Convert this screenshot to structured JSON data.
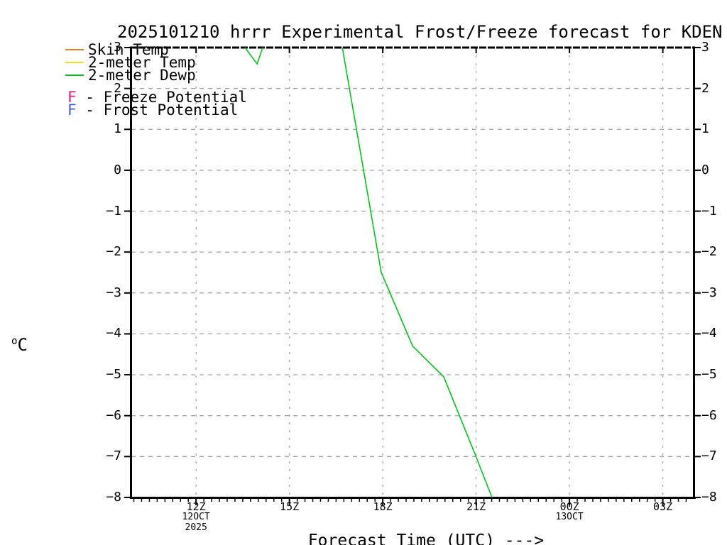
{
  "title": "2025101210 hrrr Experimental Frost/Freeze forecast for KDEN",
  "y_unit": {
    "sup": "o",
    "base": "C"
  },
  "colors": {
    "skin_temp": "#e8821e",
    "temp_2m": "#e8e020",
    "dewp_2m": "#00c818",
    "freeze": "#f01478",
    "frost": "#3c5cff",
    "grid": "#a9a9a9",
    "axis": "#000000"
  },
  "legend": {
    "items": [
      {
        "kind": "line",
        "colorKey": "skin_temp",
        "label": "Skin Temp"
      },
      {
        "kind": "line",
        "colorKey": "temp_2m",
        "label": "2-meter Temp"
      },
      {
        "kind": "line",
        "colorKey": "dewp_2m",
        "label": "2-meter Dewp"
      },
      {
        "kind": "marker",
        "marker": "F",
        "sep": " - ",
        "colorKey": "freeze",
        "label": "Freeze Potential"
      },
      {
        "kind": "marker",
        "marker": "F",
        "sep": " - ",
        "colorKey": "frost",
        "label": "Frost Potential"
      }
    ]
  },
  "chart_data": {
    "type": "line",
    "title": "2025101210 hrrr Experimental Frost/Freeze forecast for KDEN",
    "xlabel": "Forecast Time (UTC) --->",
    "ylabel": "oC",
    "x_axis": {
      "unit": "UTC hour, 12OCT2025 through 13OCT2025",
      "range_hours": [
        9.92,
        27.99
      ],
      "major_tick_hours": [
        12,
        15,
        18,
        21,
        24,
        27
      ],
      "minor_tick_interval_hours": 0.25,
      "ticks": [
        {
          "hour": 12,
          "label": "12Z",
          "sublabels": [
            "12OCT",
            "2025"
          ]
        },
        {
          "hour": 15,
          "label": "15Z",
          "sublabels": []
        },
        {
          "hour": 18,
          "label": "18Z",
          "sublabels": []
        },
        {
          "hour": 21,
          "label": "21Z",
          "sublabels": []
        },
        {
          "hour": 24,
          "label": "00Z",
          "sublabels": [
            "13OCT"
          ]
        },
        {
          "hour": 27,
          "label": "03Z",
          "sublabels": []
        }
      ]
    },
    "y_axis": {
      "range": [
        -8,
        3
      ],
      "tick_step": 1,
      "labels_both_sides": true
    },
    "grid": true,
    "legend_position": "top-left",
    "series": [
      {
        "name": "Skin Temp",
        "colorKey": "skin_temp",
        "segments": [],
        "note": "entire trace above +3 axis limit; not visible in plot"
      },
      {
        "name": "2-meter Temp",
        "colorKey": "temp_2m",
        "segments": [],
        "note": "entire trace above +3 axis limit; not visible in plot"
      },
      {
        "name": "2-meter Dewp",
        "colorKey": "dewp_2m",
        "segments": [
          [
            [
              13.57,
              3.0
            ],
            [
              13.96,
              2.6
            ],
            [
              14.14,
              3.0
            ]
          ],
          [
            [
              16.7,
              3.0
            ],
            [
              17.95,
              -2.5
            ],
            [
              18.96,
              -4.3
            ],
            [
              19.96,
              -5.05
            ],
            [
              20.97,
              -6.95
            ],
            [
              21.51,
              -8.0
            ]
          ]
        ],
        "note": "clipped at +3 top and -8 bottom of axis"
      }
    ],
    "freeze_markers": [],
    "frost_markers": []
  }
}
